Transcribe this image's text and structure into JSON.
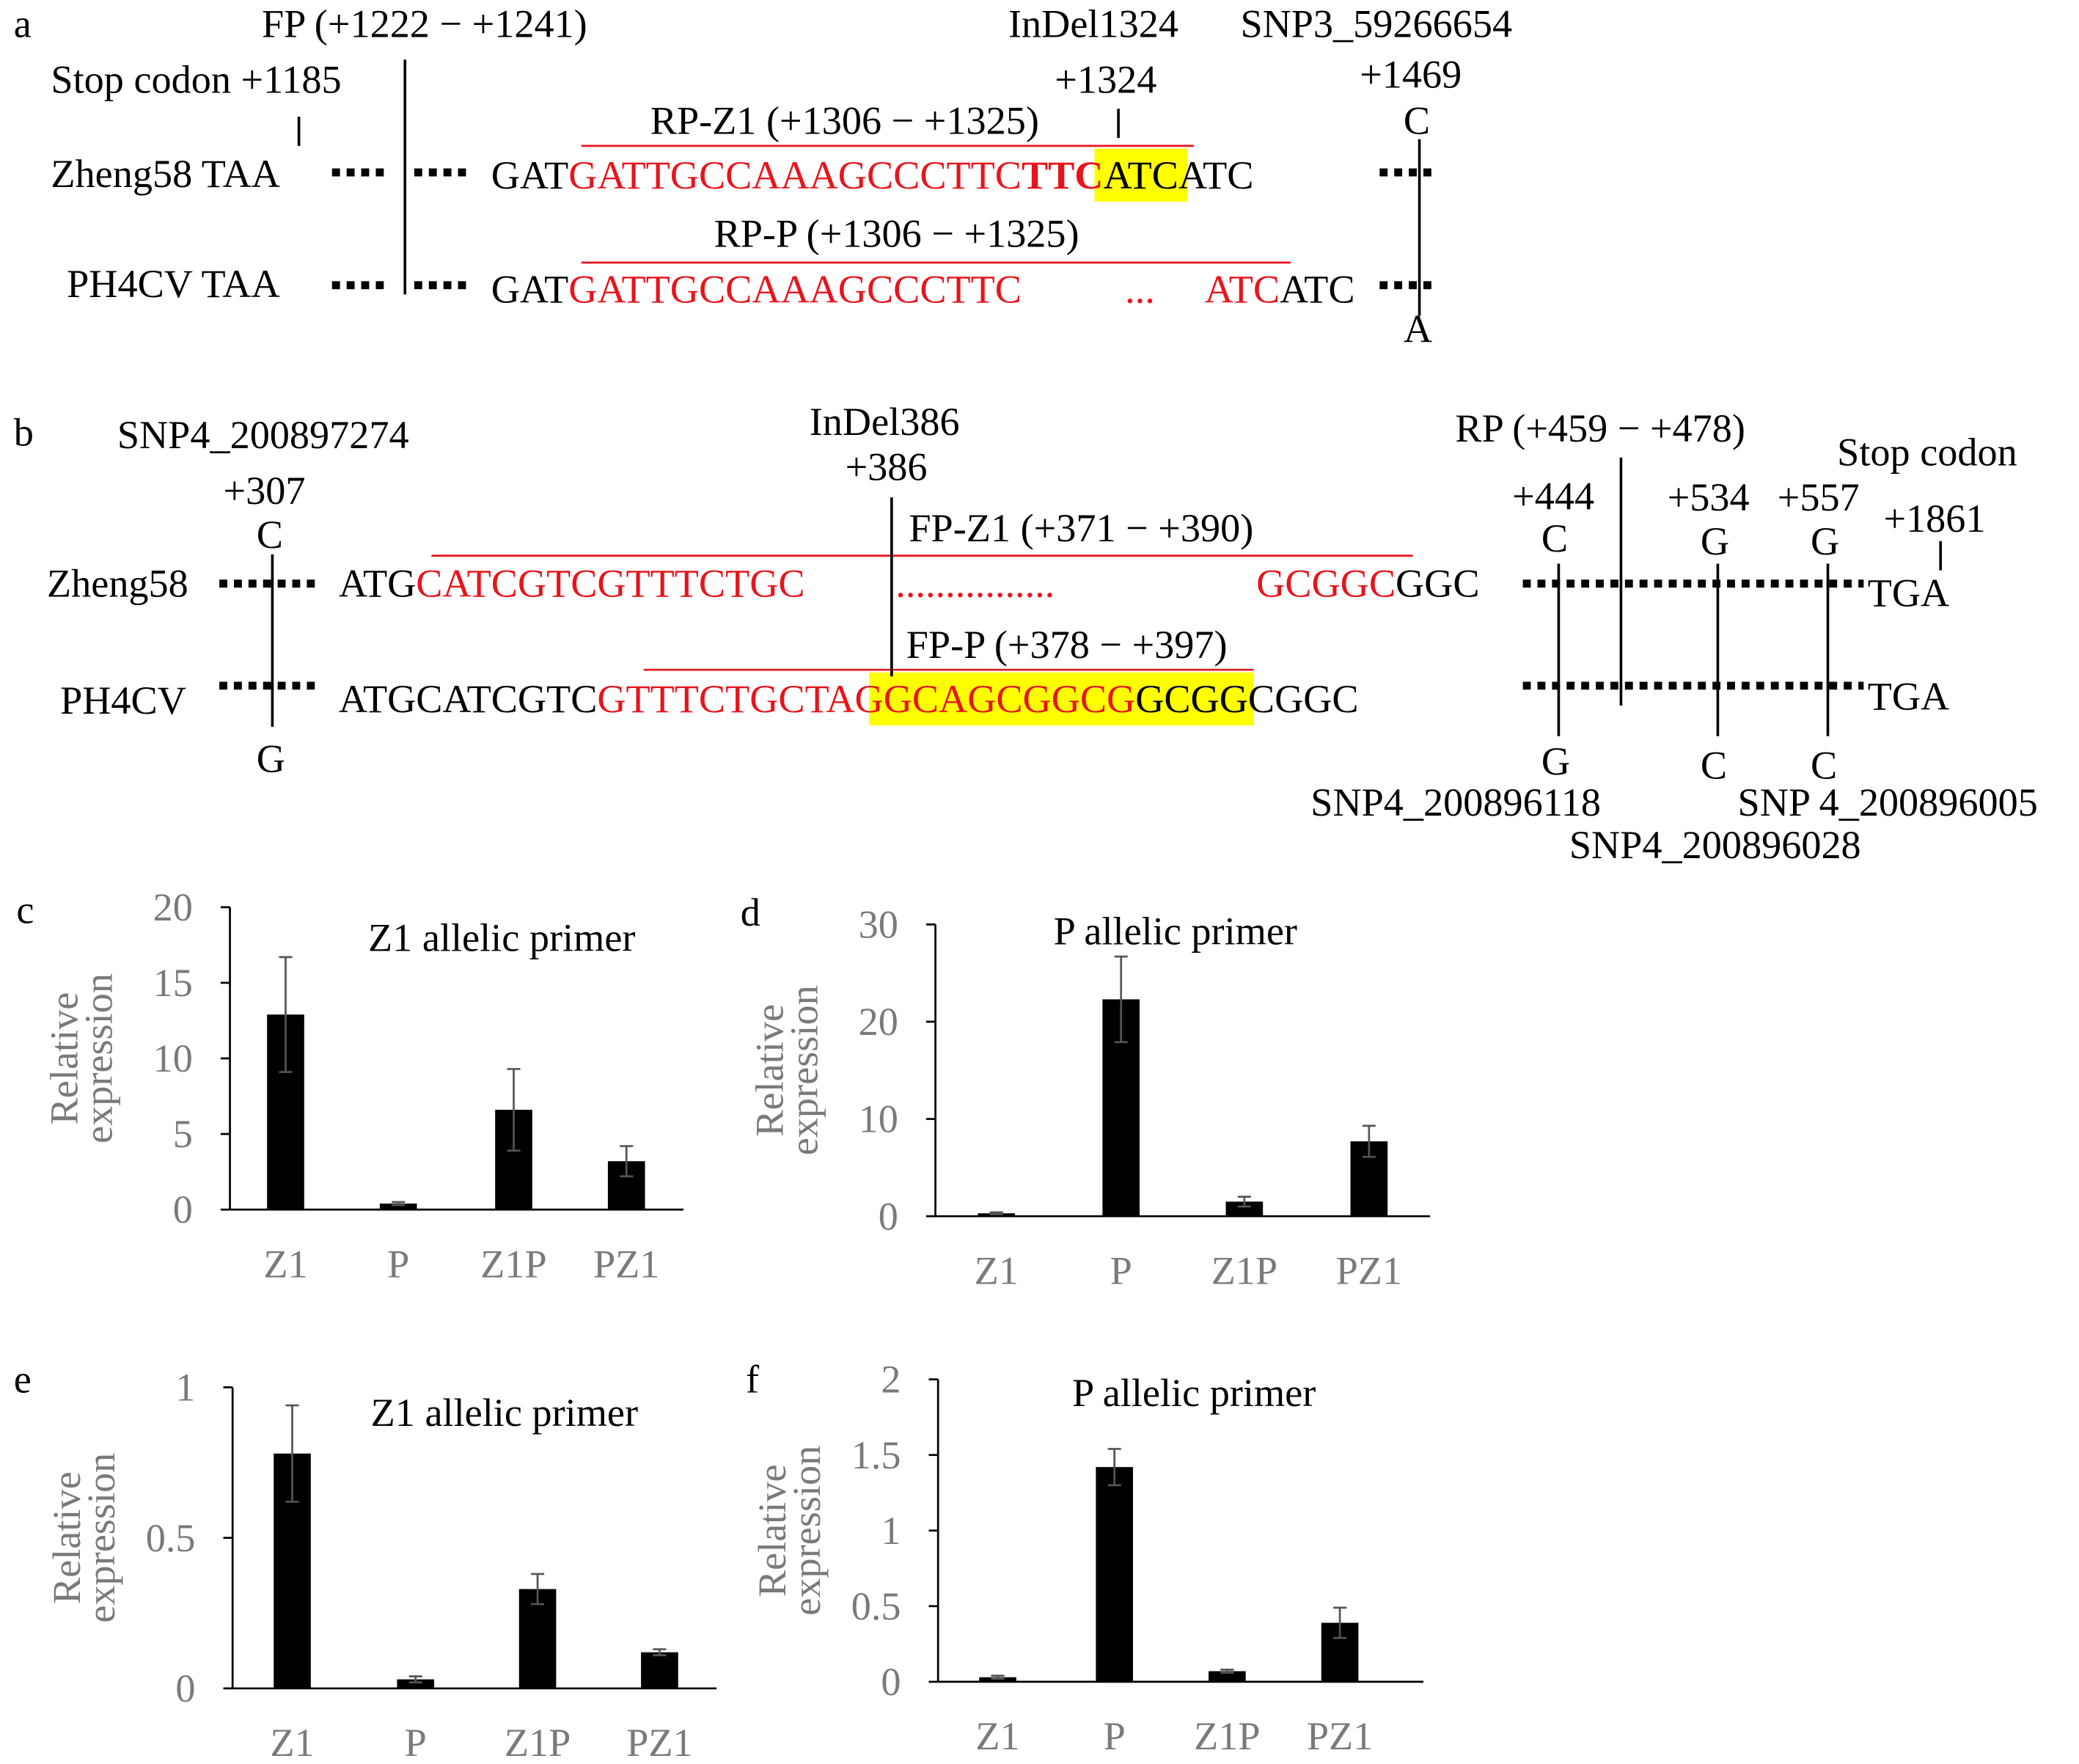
{
  "diagram_a": {
    "label": "a",
    "fp": "FP (+1222 − +1241)",
    "indel": "InDel1324",
    "snp": "SNP3_59266654",
    "stop": "Stop codon +1185",
    "indel_pos": "+1324",
    "snp_pos": "+1469",
    "rp_z1": "RP-Z1  (+1306 − +1325)",
    "allele_1": "C",
    "row1_name": "Zheng58 TAA",
    "row1_seq": [
      "GAT",
      "GATTGCCAAAGCCCTTC",
      "TTC",
      "ATCATC"
    ],
    "rp_p": "RP-P (+1306 − +1325)",
    "row2_name": "PH4CV TAA",
    "row2_seq": [
      "GAT",
      "GATTGCCAAAGCCCTTC",
      "...",
      "ATC",
      "ATC"
    ],
    "allele_2": "A"
  },
  "diagram_b": {
    "label": "b",
    "snp_left": "SNP4_200897274",
    "indel": "InDel386",
    "rp": "RP (+459 − +478)",
    "stop": "Stop codon",
    "pos_307": "+307",
    "pos_386": "+386",
    "pos_444": "+444",
    "pos_534": "+534",
    "pos_557": "+557",
    "pos_1861": "+1861",
    "top_alleles": [
      "C",
      "C",
      "G",
      "G"
    ],
    "fp_z1": "FP-Z1  (+371 − +390)",
    "row1_name": "Zheng58",
    "row1_seq": [
      "ATG",
      "CATCGTCGTTTCTGC",
      "................",
      "GCGGC",
      "GGC"
    ],
    "row1_end": "TGA",
    "fp_p": "FP-P (+378 − +397)",
    "row2_name": "PH4CV",
    "row2_seq": [
      "ATGCATCGTC",
      "GTTTCTGC",
      "TAGGCAGCGGCG",
      "GCGGCGGC"
    ],
    "row2_end": "TGA",
    "bottom_alleles": [
      "G",
      "G",
      "C",
      "C"
    ],
    "snp_444": "SNP4_200896118",
    "snp_557": "SNP 4_200896005",
    "snp_534": "SNP4_200896028"
  },
  "chart_data": [
    {
      "type": "bar",
      "label": "c",
      "title": "Z1 allelic  primer",
      "ylabel": [
        "Relative",
        "expression"
      ],
      "categories": [
        "Z1",
        "P",
        "Z1P",
        "PZ1"
      ],
      "values": [
        12.9,
        0.4,
        6.6,
        3.2
      ],
      "errors": [
        3.8,
        0.1,
        2.7,
        1.0
      ],
      "color": "#000000",
      "ylim": [
        0,
        20
      ],
      "yticks": [
        0,
        5,
        10,
        15,
        20
      ]
    },
    {
      "type": "bar",
      "label": "d",
      "title": "P allelic  primer",
      "ylabel": [
        "Relative",
        "expression"
      ],
      "categories": [
        "Z1",
        "P",
        "Z1P",
        "PZ1"
      ],
      "values": [
        0.3,
        22.3,
        1.5,
        7.7
      ],
      "errors": [
        0.1,
        4.4,
        0.5,
        1.6
      ],
      "color": "#000000",
      "ylim": [
        0,
        30
      ],
      "yticks": [
        0,
        10,
        20,
        30
      ]
    },
    {
      "type": "bar",
      "label": "e",
      "title": "Z1 allelic primer",
      "ylabel": [
        "Relative",
        "expression"
      ],
      "categories": [
        "Z1",
        "P",
        "Z1P",
        "PZ1"
      ],
      "values": [
        0.78,
        0.03,
        0.33,
        0.12
      ],
      "errors": [
        0.16,
        0.01,
        0.05,
        0.01
      ],
      "color": "#000000",
      "ylim": [
        0,
        1
      ],
      "yticks": [
        0,
        0.5,
        1
      ]
    },
    {
      "type": "bar",
      "label": "f",
      "title": "P allelic  primer",
      "ylabel": [
        "Relative",
        "expression"
      ],
      "categories": [
        "Z1",
        "P",
        "Z1P",
        "PZ1"
      ],
      "values": [
        0.03,
        1.42,
        0.07,
        0.39
      ],
      "errors": [
        0.01,
        0.12,
        0.01,
        0.1
      ],
      "color": "#000000",
      "ylim": [
        0,
        2
      ],
      "yticks": [
        0,
        0.5,
        1,
        1.5,
        2
      ]
    }
  ]
}
